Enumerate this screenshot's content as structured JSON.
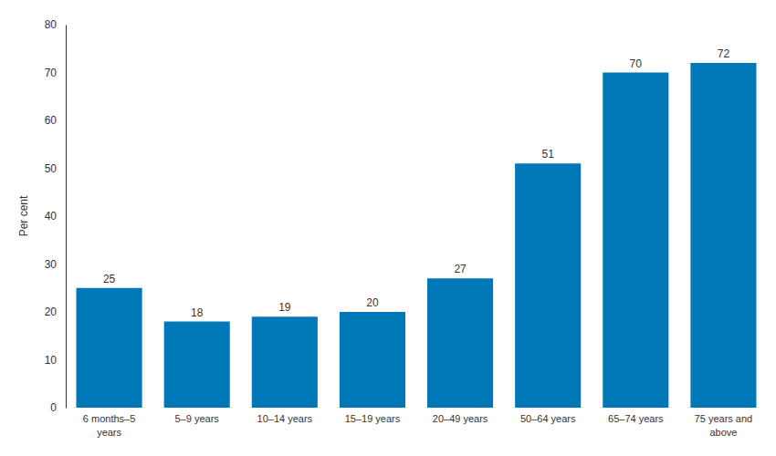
{
  "chart_data": {
    "type": "bar",
    "ylabel": "Per cent",
    "categories": [
      "6 months–5 years",
      "5–9 years",
      "10–14 years",
      "15–19 years",
      "20–49 years",
      "50–64 years",
      "65–74 years",
      "75 years and above"
    ],
    "values": [
      25,
      18,
      19,
      20,
      27,
      51,
      70,
      72
    ],
    "color": "#0077b6",
    "ylim": [
      0,
      80
    ],
    "yticks": [
      0,
      10,
      20,
      30,
      40,
      50,
      60,
      70,
      80
    ],
    "grid": false,
    "data_labels": true
  }
}
